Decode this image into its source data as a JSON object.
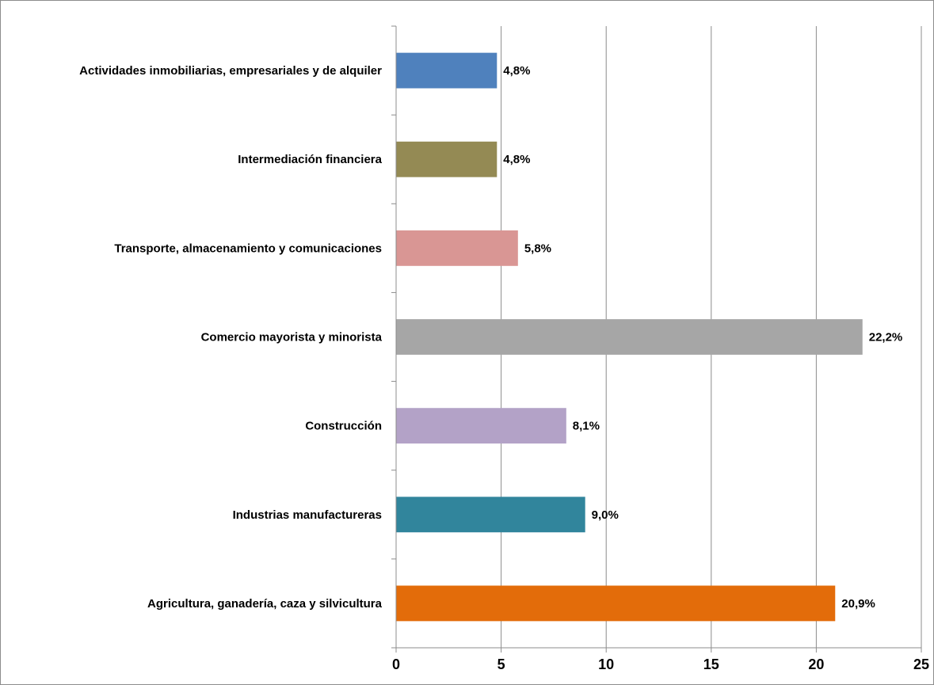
{
  "chart_data": {
    "type": "bar",
    "orientation": "horizontal",
    "title": "",
    "xlabel": "",
    "ylabel": "",
    "xlim": [
      0,
      25
    ],
    "x_ticks": [
      0,
      5,
      10,
      15,
      20,
      25
    ],
    "grid": "vertical major gridlines on",
    "legend": "none",
    "categories": [
      "Agricultura, ganadería, caza y silvicultura",
      "Industrias manufactureras",
      "Construcción",
      "Comercio mayorista y minorista",
      "Transporte, almacenamiento y comunicaciones",
      "Intermediación financiera",
      "Actividades inmobiliarias, empresariales y de alquiler"
    ],
    "values": [
      20.9,
      9.0,
      8.1,
      22.2,
      5.8,
      4.8,
      4.8
    ],
    "data_labels": [
      "20,9%",
      "9,0%",
      "8,1%",
      "22,2%",
      "5,8%",
      "4,8%",
      "4,8%"
    ],
    "colors": [
      "#e36c0a",
      "#31859c",
      "#b3a2c7",
      "#a6a6a6",
      "#d99694",
      "#948a54",
      "#4f81bd"
    ]
  }
}
